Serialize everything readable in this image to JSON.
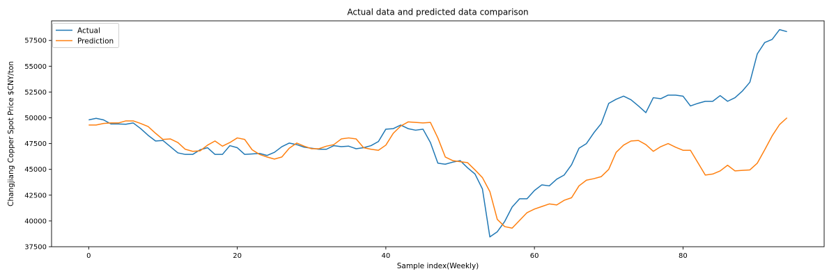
{
  "chart_data": {
    "type": "line",
    "title": "Actual data and predicted data comparison",
    "xlabel": "Sample index(Weekly)",
    "ylabel": "Changjiang Copper Spot Price $CNY/ton",
    "xlim": [
      -5,
      99
    ],
    "ylim": [
      37500,
      59400
    ],
    "xticks": [
      0,
      20,
      40,
      60,
      80
    ],
    "yticks": [
      37500,
      40000,
      42500,
      45000,
      47500,
      50000,
      52500,
      55000,
      57500
    ],
    "grid": false,
    "legend_position": "top-left",
    "x": [
      0,
      1,
      2,
      3,
      4,
      5,
      6,
      7,
      8,
      9,
      10,
      11,
      12,
      13,
      14,
      15,
      16,
      17,
      18,
      19,
      20,
      21,
      22,
      23,
      24,
      25,
      26,
      27,
      28,
      29,
      30,
      31,
      32,
      33,
      34,
      35,
      36,
      37,
      38,
      39,
      40,
      41,
      42,
      43,
      44,
      45,
      46,
      47,
      48,
      49,
      50,
      51,
      52,
      53,
      54,
      55,
      56,
      57,
      58,
      59,
      60,
      61,
      62,
      63,
      64,
      65,
      66,
      67,
      68,
      69,
      70,
      71,
      72,
      73,
      74,
      75,
      76,
      77,
      78,
      79,
      80,
      81,
      82,
      83,
      84,
      85,
      86,
      87,
      88,
      89,
      90,
      91,
      92,
      93,
      94
    ],
    "series": [
      {
        "name": "Actual",
        "color": "#1f77b4",
        "values": [
          49800,
          49950,
          49800,
          49400,
          49400,
          49380,
          49500,
          48950,
          48300,
          47750,
          47800,
          47200,
          46600,
          46450,
          46450,
          46900,
          47100,
          46450,
          46450,
          47300,
          47100,
          46450,
          46500,
          46550,
          46350,
          46650,
          47200,
          47550,
          47400,
          47150,
          47050,
          46950,
          46950,
          47300,
          47200,
          47250,
          47000,
          47100,
          47300,
          47700,
          48900,
          48950,
          49300,
          48950,
          48800,
          48900,
          47600,
          45600,
          45500,
          45700,
          45850,
          45150,
          44550,
          43100,
          38450,
          38950,
          39950,
          41350,
          42150,
          42150,
          42950,
          43500,
          43400,
          44050,
          44450,
          45450,
          47050,
          47500,
          48550,
          49450,
          51400,
          51800,
          52100,
          51750,
          51150,
          50500,
          51950,
          51850,
          52200,
          52200,
          52100,
          51150,
          51400,
          51600,
          51600,
          52150,
          51600,
          51950,
          52600,
          53450,
          56200,
          57300,
          57600,
          58550,
          58350
        ]
      },
      {
        "name": "Prediction",
        "color": "#ff7f0e",
        "values": [
          49300,
          49300,
          49450,
          49500,
          49500,
          49700,
          49700,
          49450,
          49150,
          48500,
          47900,
          47950,
          47600,
          46950,
          46750,
          46800,
          47350,
          47750,
          47250,
          47600,
          48050,
          47900,
          46900,
          46450,
          46200,
          46000,
          46200,
          47050,
          47550,
          47250,
          47000,
          47000,
          47250,
          47400,
          47950,
          48050,
          47950,
          47100,
          46950,
          46850,
          47350,
          48500,
          49200,
          49600,
          49550,
          49500,
          49550,
          48050,
          46200,
          45850,
          45750,
          45650,
          44950,
          44200,
          42850,
          40150,
          39450,
          39300,
          40050,
          40800,
          41150,
          41400,
          41650,
          41550,
          42000,
          42250,
          43400,
          43950,
          44100,
          44300,
          45000,
          46650,
          47350,
          47750,
          47800,
          47400,
          46750,
          47200,
          47500,
          47150,
          46850,
          46850,
          45650,
          44450,
          44550,
          44850,
          45400,
          44850,
          44900,
          44950,
          45600,
          46900,
          48250,
          49350,
          50000
        ]
      }
    ]
  }
}
